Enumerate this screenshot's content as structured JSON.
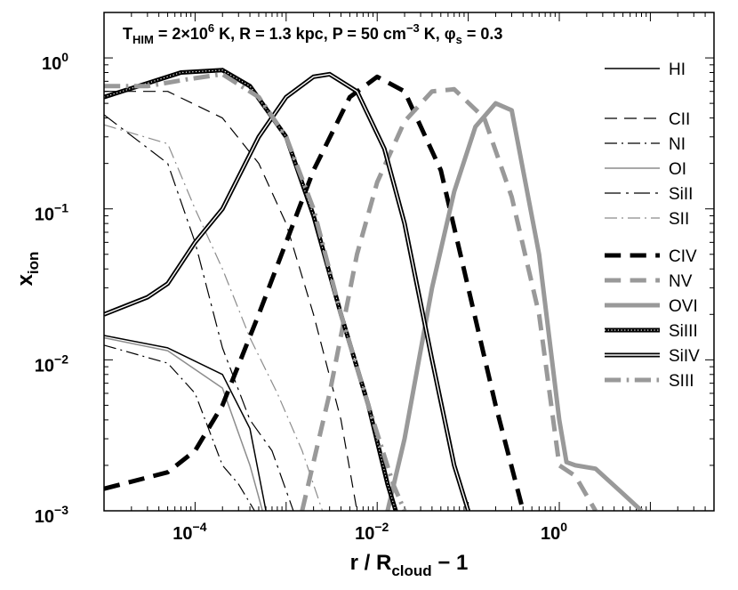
{
  "chart_data": {
    "type": "line",
    "title_parts": {
      "t_sym": "T",
      "t_sub": "HIM",
      "t_val": " = 2×10",
      "t_exp": "6",
      "t_unit": " K,  R = 1.3 kpc,  P = 50 cm",
      "p_exp": "−3",
      "p_unit": " K,  ",
      "phi": "φ",
      "phi_sub": "s",
      "phi_val": " = 0.3"
    },
    "xlabel_main": "r / R",
    "xlabel_sub": "cloud",
    "xlabel_tail": " − 1",
    "ylabel_main": "x",
    "ylabel_sub": "ion",
    "xscale": "log",
    "yscale": "log",
    "xlim": [
      1e-05,
      50
    ],
    "ylim": [
      0.001,
      2
    ],
    "x_ticks": [
      {
        "base": "10",
        "exp": "−4",
        "v": 0.0001
      },
      {
        "base": "10",
        "exp": "−2",
        "v": 0.01
      },
      {
        "base": "10",
        "exp": "0",
        "v": 1
      }
    ],
    "y_ticks": [
      {
        "base": "10",
        "exp": "0",
        "v": 1
      },
      {
        "base": "10",
        "exp": "−1",
        "v": 0.1
      },
      {
        "base": "10",
        "exp": "−2",
        "v": 0.01
      },
      {
        "base": "10",
        "exp": "−3",
        "v": 0.001
      }
    ],
    "legend_position": "right",
    "series": [
      {
        "name": "HI",
        "color": "#000000",
        "style": "solid",
        "width": 1.5,
        "x": [
          1e-05,
          5e-05,
          0.0002,
          0.0004,
          0.0006
        ],
        "y": [
          0.0145,
          0.012,
          0.008,
          0.0035,
          0.001
        ]
      },
      {
        "name": "CII",
        "color": "#000000",
        "style": "dash",
        "width": 1.2,
        "x": [
          1e-05,
          5e-05,
          0.0002,
          0.0005,
          0.001,
          0.002,
          0.004,
          0.006
        ],
        "y": [
          0.6,
          0.6,
          0.4,
          0.2,
          0.08,
          0.02,
          0.004,
          0.001
        ]
      },
      {
        "name": "NI",
        "color": "#000000",
        "style": "dashdot",
        "width": 1.2,
        "x": [
          1e-05,
          5e-05,
          0.0001,
          0.0002,
          0.0003,
          0.00045
        ],
        "y": [
          0.0125,
          0.0095,
          0.006,
          0.002,
          0.0015,
          0.001
        ]
      },
      {
        "name": "OI",
        "color": "#8c8c8c",
        "style": "solid",
        "width": 1.5,
        "x": [
          1e-05,
          5e-05,
          0.0002,
          0.0004,
          0.00055
        ],
        "y": [
          0.014,
          0.0115,
          0.0065,
          0.002,
          0.001
        ]
      },
      {
        "name": "SiII",
        "color": "#000000",
        "style": "longdash",
        "width": 1.2,
        "x": [
          1e-05,
          5e-05,
          0.0001,
          0.0002,
          0.0004,
          0.0007,
          0.0012
        ],
        "y": [
          0.42,
          0.2,
          0.06,
          0.012,
          0.004,
          0.0025,
          0.001
        ]
      },
      {
        "name": "SII",
        "color": "#8c8c8c",
        "style": "dashdot",
        "width": 1.2,
        "x": [
          1e-05,
          5e-05,
          0.0001,
          0.0002,
          0.0004,
          0.0008,
          0.0015,
          0.0025
        ],
        "y": [
          0.36,
          0.27,
          0.1,
          0.04,
          0.014,
          0.006,
          0.0025,
          0.001
        ]
      },
      {
        "name": "CIV",
        "color": "#000000",
        "style": "dash",
        "width": 5,
        "x": [
          1e-05,
          5e-05,
          0.0001,
          0.0002,
          0.0005,
          0.001,
          0.002,
          0.005,
          0.01,
          0.02,
          0.05,
          0.1,
          0.2,
          0.4
        ],
        "y": [
          0.0014,
          0.0018,
          0.0025,
          0.005,
          0.02,
          0.06,
          0.18,
          0.55,
          0.75,
          0.6,
          0.18,
          0.03,
          0.005,
          0.001
        ]
      },
      {
        "name": "NV",
        "color": "#999999",
        "style": "dash",
        "width": 5,
        "x": [
          0.0015,
          0.003,
          0.006,
          0.01,
          0.02,
          0.04,
          0.07,
          0.15,
          0.3,
          0.6,
          1,
          1.5,
          2.5
        ],
        "y": [
          0.001,
          0.006,
          0.05,
          0.15,
          0.38,
          0.6,
          0.62,
          0.4,
          0.12,
          0.02,
          0.002,
          0.0017,
          0.001
        ]
      },
      {
        "name": "OVI",
        "color": "#999999",
        "style": "solid",
        "width": 5,
        "x": [
          0.013,
          0.02,
          0.04,
          0.07,
          0.12,
          0.2,
          0.3,
          0.6,
          1,
          1.2,
          1.5,
          2.5,
          5,
          8
        ],
        "y": [
          0.001,
          0.003,
          0.03,
          0.13,
          0.35,
          0.5,
          0.45,
          0.05,
          0.004,
          0.0021,
          0.002,
          0.0019,
          0.0013,
          0.001
        ]
      },
      {
        "name": "SiIII",
        "color": "#000000",
        "style": "doubledot",
        "width": 5,
        "x": [
          1e-05,
          3e-05,
          7e-05,
          0.0002,
          0.0004,
          0.001,
          0.002,
          0.004,
          0.008,
          0.013,
          0.016
        ],
        "y": [
          0.55,
          0.68,
          0.8,
          0.83,
          0.65,
          0.3,
          0.09,
          0.02,
          0.005,
          0.0015,
          0.001
        ]
      },
      {
        "name": "SiIV",
        "color": "#000000",
        "style": "doublewhite",
        "width": 5,
        "x": [
          1e-05,
          3e-05,
          5e-05,
          0.0001,
          0.0002,
          0.0005,
          0.001,
          0.002,
          0.003,
          0.006,
          0.012,
          0.02,
          0.04,
          0.07,
          0.1
        ],
        "y": [
          0.02,
          0.026,
          0.032,
          0.06,
          0.1,
          0.3,
          0.55,
          0.75,
          0.78,
          0.6,
          0.25,
          0.08,
          0.01,
          0.002,
          0.001
        ]
      },
      {
        "name": "SIII",
        "color": "#999999",
        "style": "dashdot",
        "width": 5,
        "x": [
          1e-05,
          3e-05,
          8e-05,
          0.0002,
          0.0005,
          0.001,
          0.002,
          0.004,
          0.008,
          0.015,
          0.02
        ],
        "y": [
          0.65,
          0.65,
          0.72,
          0.78,
          0.55,
          0.3,
          0.1,
          0.02,
          0.005,
          0.0015,
          0.001
        ]
      }
    ]
  }
}
